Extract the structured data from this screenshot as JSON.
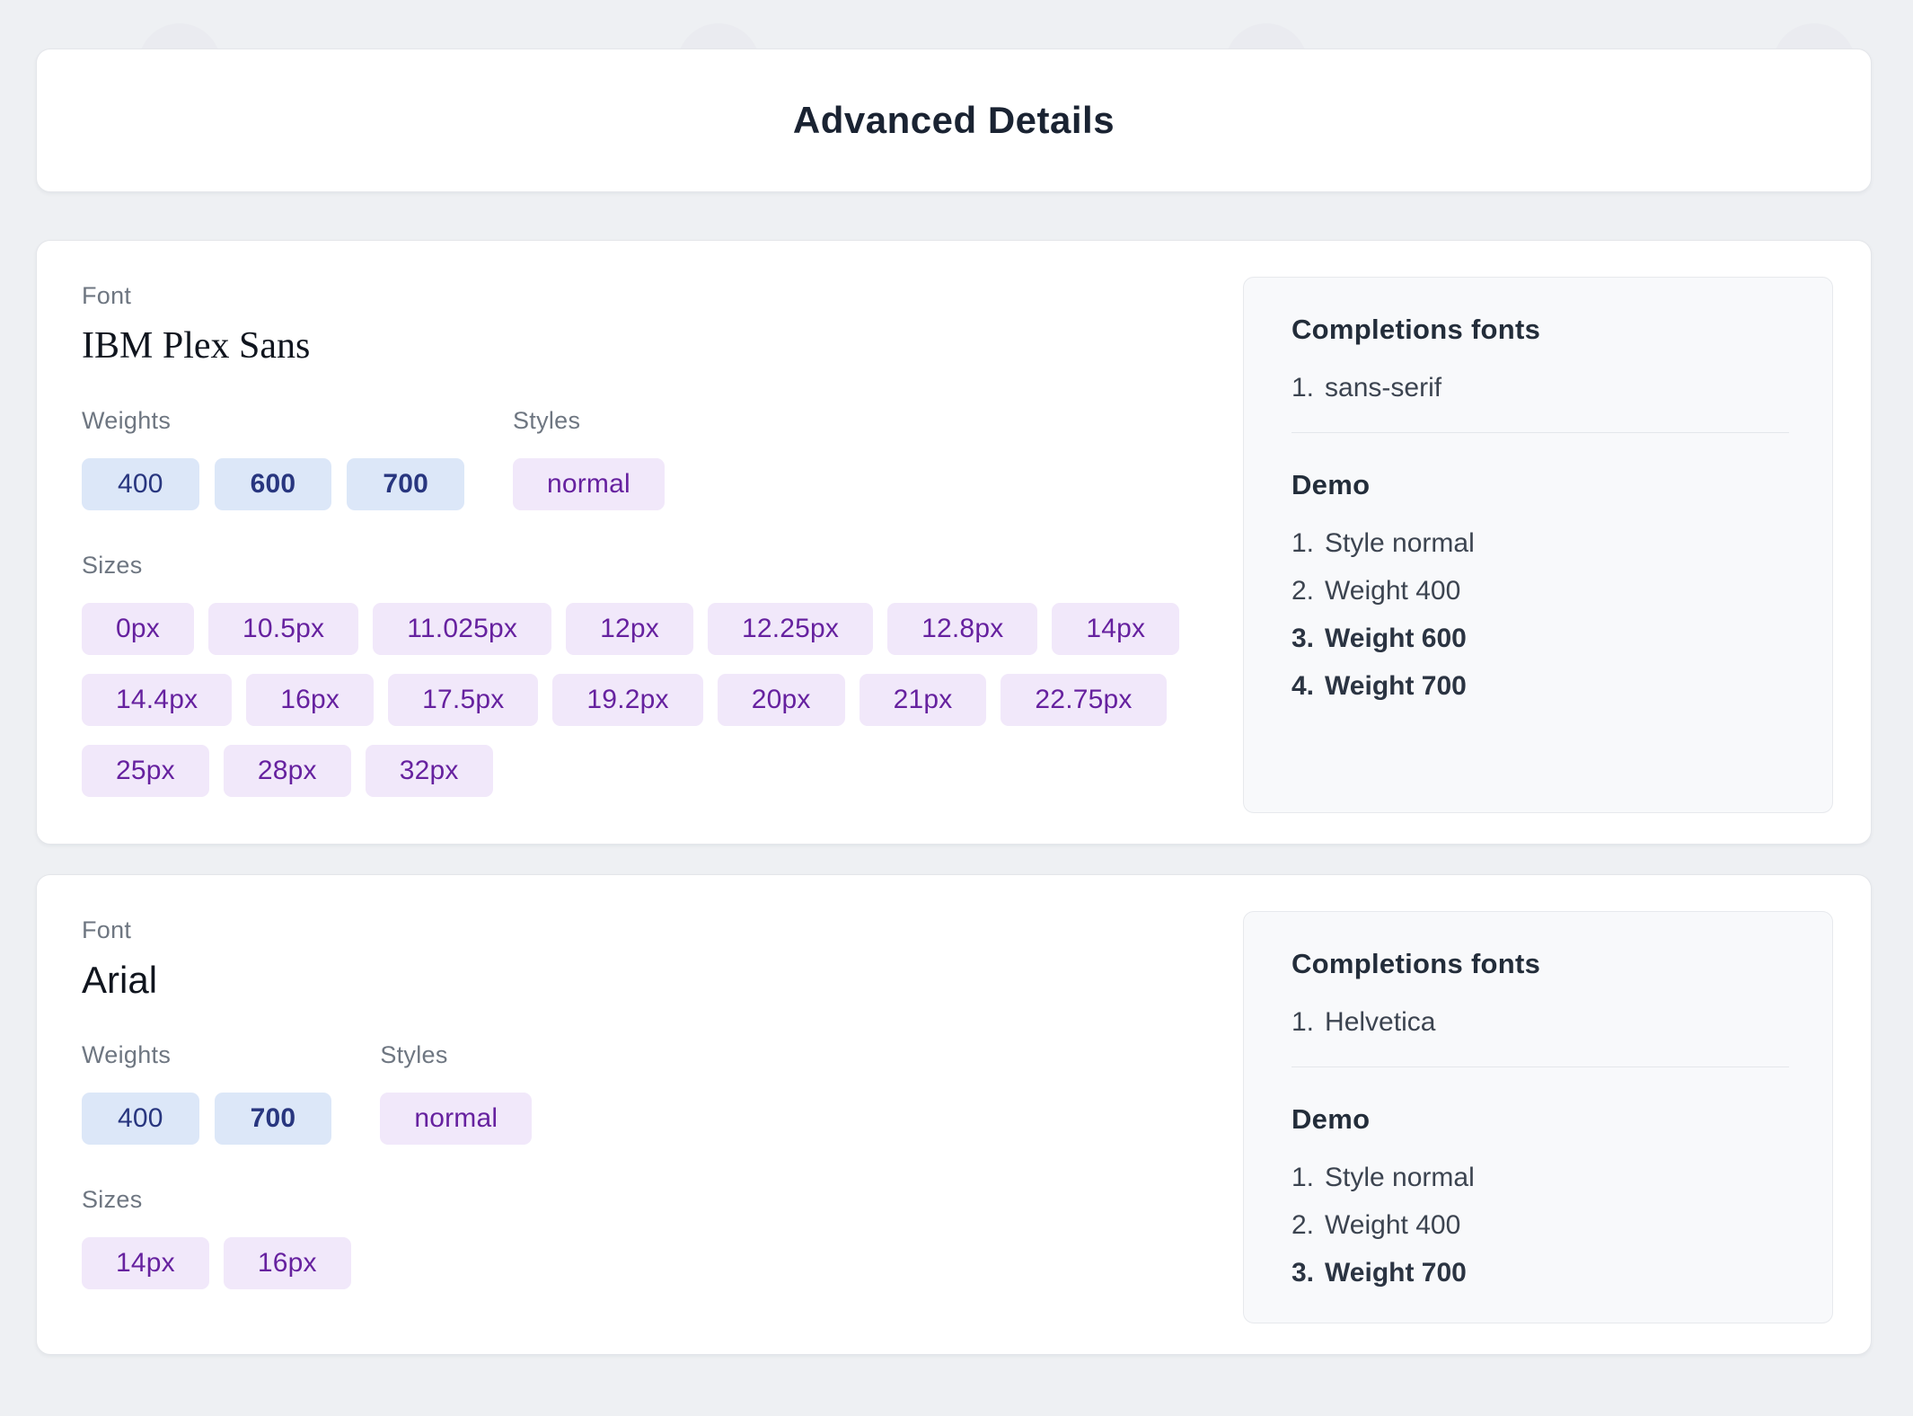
{
  "page": {
    "title": "Advanced Details"
  },
  "labels": {
    "font": "Font",
    "weights": "Weights",
    "styles": "Styles",
    "sizes": "Sizes",
    "completions": "Completions fonts",
    "demo": "Demo"
  },
  "colors": {
    "page_background": "#eef0f3",
    "card_background": "#ffffff",
    "weight_chip_background": "#dce7f8",
    "weight_chip_text": "#28367f",
    "purple_chip_background": "#f1e8fa",
    "purple_chip_text": "#66219f",
    "panel_background": "#f8f9fb",
    "title_text": "#1a2332",
    "label_text": "#6e7681"
  },
  "fonts": [
    {
      "name": "IBM Plex Sans",
      "weights": [
        {
          "value": "400",
          "bold": false
        },
        {
          "value": "600",
          "bold": true
        },
        {
          "value": "700",
          "bold": true
        }
      ],
      "styles": [
        {
          "value": "normal",
          "bold": false
        }
      ],
      "sizes": [
        {
          "value": "0px",
          "bold": false
        },
        {
          "value": "10.5px",
          "bold": false
        },
        {
          "value": "11.025px",
          "bold": false
        },
        {
          "value": "12px",
          "bold": false
        },
        {
          "value": "12.25px",
          "bold": false
        },
        {
          "value": "12.8px",
          "bold": false
        },
        {
          "value": "14px",
          "bold": false
        },
        {
          "value": "14.4px",
          "bold": false
        },
        {
          "value": "16px",
          "bold": false
        },
        {
          "value": "17.5px",
          "bold": false
        },
        {
          "value": "19.2px",
          "bold": false
        },
        {
          "value": "20px",
          "bold": false
        },
        {
          "value": "21px",
          "bold": false
        },
        {
          "value": "22.75px",
          "bold": false
        },
        {
          "value": "25px",
          "bold": false
        },
        {
          "value": "28px",
          "bold": false
        },
        {
          "value": "32px",
          "bold": false
        }
      ],
      "completions": [
        {
          "value": "sans-serif",
          "bold": false
        }
      ],
      "demo": [
        {
          "value": "Style normal",
          "bold": false
        },
        {
          "value": "Weight 400",
          "bold": false
        },
        {
          "value": "Weight 600",
          "bold": true
        },
        {
          "value": "Weight 700",
          "bold": true
        }
      ]
    },
    {
      "name": "Arial",
      "weights": [
        {
          "value": "400",
          "bold": false
        },
        {
          "value": "700",
          "bold": true
        }
      ],
      "styles": [
        {
          "value": "normal",
          "bold": false
        }
      ],
      "sizes": [
        {
          "value": "14px",
          "bold": false
        },
        {
          "value": "16px",
          "bold": false
        }
      ],
      "completions": [
        {
          "value": "Helvetica",
          "bold": false
        }
      ],
      "demo": [
        {
          "value": "Style normal",
          "bold": false
        },
        {
          "value": "Weight 400",
          "bold": false
        },
        {
          "value": "Weight 700",
          "bold": true
        }
      ]
    }
  ]
}
